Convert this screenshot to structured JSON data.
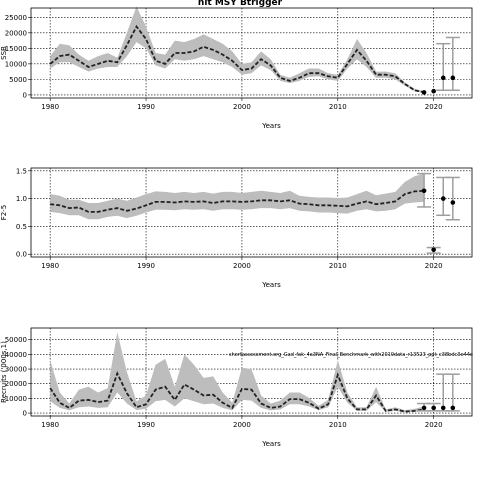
{
  "title": "hit MSY Btrigger",
  "colors": {
    "band": "#bdbdbd",
    "line": "#222222",
    "frame": "#000000",
    "grid": "#000000",
    "interval": "#9e9e9e"
  },
  "annotation": "shortassessment.org_Gad_fak_4a3NA_Final_Benchmark_with2019data_r13523_ppt_c38bdc3e44e",
  "chart_data": [
    {
      "type": "line",
      "xlabel": "Years",
      "ylabel": "SSB",
      "xlim": [
        1978,
        2024
      ],
      "ylim": [
        -1000,
        28000
      ],
      "xticks": [
        1980,
        1990,
        2000,
        2010,
        2020
      ],
      "yticks": [
        0,
        5000,
        10000,
        15000,
        20000,
        25000
      ],
      "ytick_labels": [
        "0",
        "5000",
        "10000",
        "15000",
        "20000",
        "25000"
      ],
      "grid": true,
      "x": [
        1980,
        1981,
        1982,
        1983,
        1984,
        1985,
        1986,
        1987,
        1988,
        1989,
        1990,
        1991,
        1992,
        1993,
        1994,
        1995,
        1996,
        1997,
        1998,
        1999,
        2000,
        2001,
        2002,
        2003,
        2004,
        2005,
        2006,
        2007,
        2008,
        2009,
        2010,
        2011,
        2012,
        2013,
        2014,
        2015,
        2016,
        2017,
        2018,
        2019
      ],
      "values": [
        10000,
        12500,
        13000,
        11000,
        9000,
        10000,
        11000,
        10500,
        16000,
        22000,
        18000,
        11000,
        10000,
        13500,
        13500,
        14000,
        15500,
        14500,
        13000,
        11000,
        8000,
        8500,
        11500,
        9500,
        5500,
        4500,
        5500,
        7000,
        7000,
        6000,
        5500,
        10000,
        14500,
        11000,
        6500,
        6500,
        6000,
        3500,
        1500,
        800
      ],
      "upper": [
        12500,
        16500,
        16000,
        13000,
        11000,
        12500,
        13500,
        12000,
        20000,
        28500,
        22000,
        13500,
        13000,
        17500,
        17000,
        18000,
        19500,
        18000,
        16500,
        14000,
        10000,
        10500,
        14000,
        11500,
        6500,
        5500,
        7000,
        8500,
        8500,
        7000,
        6500,
        11500,
        18000,
        13500,
        7500,
        7500,
        7000,
        4000,
        2000,
        1200
      ],
      "lower": [
        8500,
        10500,
        10500,
        9000,
        7500,
        8500,
        9000,
        9000,
        12500,
        17000,
        15000,
        9500,
        8500,
        11500,
        11000,
        11500,
        12500,
        11500,
        10500,
        9000,
        6500,
        7000,
        9500,
        8000,
        4500,
        3800,
        4500,
        5800,
        6000,
        5000,
        4500,
        8500,
        11500,
        9000,
        5500,
        5500,
        5000,
        3000,
        1200,
        600
      ],
      "points": [
        {
          "x": 2019,
          "y": 800
        },
        {
          "x": 2020,
          "y": 1200
        },
        {
          "x": 2021,
          "y": 5500
        },
        {
          "x": 2022,
          "y": 5500
        }
      ],
      "intervals": [
        {
          "x": 2021,
          "lo": 1500,
          "hi": 16500
        },
        {
          "x": 2022,
          "lo": 1500,
          "hi": 18500
        }
      ]
    },
    {
      "type": "line",
      "xlabel": "Years",
      "ylabel": "F2-5",
      "xlim": [
        1978,
        2024
      ],
      "ylim": [
        -0.05,
        1.55
      ],
      "xticks": [
        1980,
        1990,
        2000,
        2010,
        2020
      ],
      "yticks": [
        0,
        0.5,
        1.0,
        1.5
      ],
      "ytick_labels": [
        "0.0",
        "0.5",
        "1.0",
        "1.5"
      ],
      "grid": true,
      "x": [
        1980,
        1981,
        1982,
        1983,
        1984,
        1985,
        1986,
        1987,
        1988,
        1989,
        1990,
        1991,
        1992,
        1993,
        1994,
        1995,
        1996,
        1997,
        1998,
        1999,
        2000,
        2001,
        2002,
        2003,
        2004,
        2005,
        2006,
        2007,
        2008,
        2009,
        2010,
        2011,
        2012,
        2013,
        2014,
        2015,
        2016,
        2017,
        2018,
        2019
      ],
      "values": [
        0.9,
        0.88,
        0.83,
        0.84,
        0.76,
        0.76,
        0.8,
        0.83,
        0.78,
        0.82,
        0.88,
        0.94,
        0.94,
        0.93,
        0.95,
        0.94,
        0.95,
        0.92,
        0.95,
        0.95,
        0.94,
        0.95,
        0.97,
        0.97,
        0.95,
        0.97,
        0.91,
        0.9,
        0.88,
        0.88,
        0.87,
        0.86,
        0.91,
        0.95,
        0.9,
        0.92,
        0.95,
        1.08,
        1.13,
        1.14
      ],
      "upper": [
        1.08,
        1.05,
        0.98,
        0.98,
        0.92,
        0.92,
        0.96,
        1.0,
        0.96,
        1.02,
        1.08,
        1.13,
        1.12,
        1.1,
        1.12,
        1.1,
        1.12,
        1.09,
        1.12,
        1.12,
        1.1,
        1.12,
        1.14,
        1.12,
        1.1,
        1.14,
        1.05,
        1.03,
        1.02,
        1.02,
        1.01,
        1.02,
        1.08,
        1.14,
        1.06,
        1.09,
        1.12,
        1.3,
        1.4,
        1.45
      ],
      "lower": [
        0.76,
        0.74,
        0.7,
        0.7,
        0.63,
        0.63,
        0.67,
        0.69,
        0.65,
        0.69,
        0.75,
        0.8,
        0.8,
        0.79,
        0.81,
        0.8,
        0.81,
        0.78,
        0.81,
        0.81,
        0.8,
        0.81,
        0.83,
        0.83,
        0.81,
        0.83,
        0.78,
        0.77,
        0.75,
        0.75,
        0.74,
        0.73,
        0.78,
        0.81,
        0.77,
        0.78,
        0.81,
        0.91,
        0.93,
        0.94
      ],
      "points": [
        {
          "x": 2019,
          "y": 1.14
        },
        {
          "x": 2020,
          "y": 0.08
        },
        {
          "x": 2021,
          "y": 1.0
        },
        {
          "x": 2022,
          "y": 0.93
        }
      ],
      "intervals": [
        {
          "x": 2019,
          "lo": 0.85,
          "hi": 1.45
        },
        {
          "x": 2020,
          "lo": 0.02,
          "hi": 0.12
        },
        {
          "x": 2021,
          "lo": 0.7,
          "hi": 1.38
        },
        {
          "x": 2022,
          "lo": 0.62,
          "hi": 1.38
        }
      ]
    },
    {
      "type": "line",
      "xlabel": "Years",
      "ylabel": "Recruits ('000s,1)",
      "xlim": [
        1978,
        2024
      ],
      "ylim": [
        -2000,
        58000
      ],
      "xticks": [
        1980,
        1990,
        2000,
        2010,
        2020
      ],
      "yticks": [
        0,
        10000,
        20000,
        30000,
        40000,
        50000
      ],
      "ytick_labels": [
        "0",
        "10000",
        "20000",
        "30000",
        "40000",
        "50000"
      ],
      "grid": true,
      "x": [
        1980,
        1981,
        1982,
        1983,
        1984,
        1985,
        1986,
        1987,
        1988,
        1989,
        1990,
        1991,
        1992,
        1993,
        1994,
        1995,
        1996,
        1997,
        1998,
        1999,
        2000,
        2001,
        2002,
        2003,
        2004,
        2005,
        2006,
        2007,
        2008,
        2009,
        2010,
        2011,
        2012,
        2013,
        2014,
        2015,
        2016,
        2017,
        2018,
        2019
      ],
      "values": [
        17000,
        7000,
        3500,
        8500,
        9000,
        7500,
        8500,
        27000,
        13500,
        4000,
        6000,
        16000,
        18000,
        9000,
        19500,
        16000,
        12000,
        12500,
        7000,
        3500,
        16500,
        16000,
        6500,
        3500,
        4500,
        9500,
        9500,
        7000,
        3000,
        6000,
        26000,
        10000,
        2500,
        2500,
        12000,
        1500,
        2500,
        1000,
        1500,
        2500
      ],
      "upper": [
        36000,
        14000,
        6500,
        16000,
        18000,
        14000,
        17000,
        55000,
        28000,
        8000,
        12000,
        33000,
        37000,
        18000,
        40000,
        33000,
        24000,
        25000,
        14000,
        7000,
        31000,
        30000,
        12000,
        6500,
        8500,
        14000,
        14000,
        10500,
        5000,
        9000,
        36000,
        14000,
        4000,
        4000,
        18000,
        2500,
        4000,
        2000,
        3000,
        4500
      ],
      "lower": [
        8000,
        3500,
        1800,
        4000,
        4500,
        3500,
        4000,
        14000,
        6500,
        2000,
        3000,
        8000,
        9000,
        4500,
        10000,
        8000,
        6000,
        6500,
        3500,
        1800,
        9000,
        8500,
        3500,
        1800,
        2400,
        6000,
        6000,
        4500,
        2000,
        4000,
        18000,
        7000,
        1500,
        1500,
        7500,
        800,
        1500,
        500,
        800,
        1200
      ],
      "points": [
        {
          "x": 2019,
          "y": 3500
        },
        {
          "x": 2020,
          "y": 3500
        },
        {
          "x": 2021,
          "y": 3500
        },
        {
          "x": 2022,
          "y": 3500
        }
      ],
      "intervals": [
        {
          "x": 2019,
          "lo": 1500,
          "hi": 6500
        },
        {
          "x": 2020,
          "lo": 1500,
          "hi": 6500
        },
        {
          "x": 2021,
          "lo": 1500,
          "hi": 26500
        },
        {
          "x": 2022,
          "lo": 1500,
          "hi": 26500
        }
      ]
    }
  ]
}
